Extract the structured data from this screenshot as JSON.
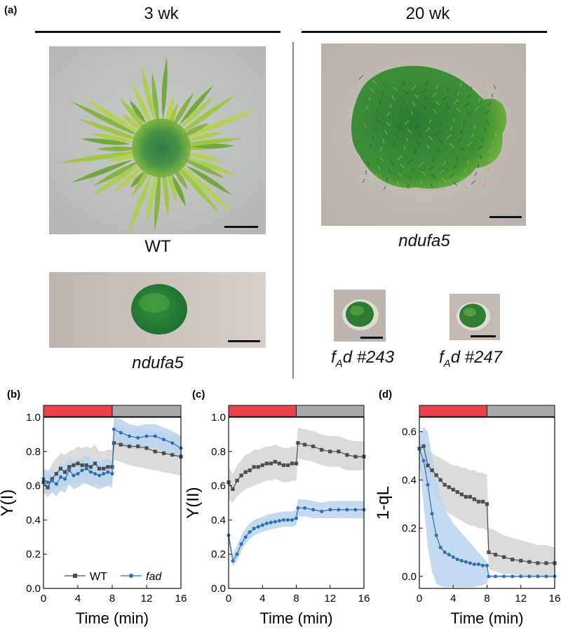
{
  "panel_a": {
    "label": "(a)",
    "col_left_title": "3 wk",
    "col_right_title": "20 wk",
    "captions": {
      "wt": "WT",
      "ndufa5_left": "ndufa5",
      "ndufa5_right": "ndufa5",
      "fad243_f": "f",
      "fad243_sub": "A",
      "fad243_rest": "d #243",
      "fad247_f": "f",
      "fad247_sub": "A",
      "fad247_rest": "d #247"
    }
  },
  "colors": {
    "light_bar": "#e8434a",
    "dark_bar": "#a7a9ab",
    "wt_line": "#4d4d4d",
    "wt_band": "#cfcfcf",
    "fad_line": "#2f6db5",
    "fad_band": "#b9d3ee"
  },
  "chart_data": [
    {
      "panel_label": "(b)",
      "type": "line",
      "xlabel": "Time (min)",
      "ylabel": "Y(I)",
      "xlim": [
        0,
        16
      ],
      "ylim": [
        0,
        1.0
      ],
      "xticks": [
        0,
        4,
        8,
        12,
        16
      ],
      "yticks": [
        0.0,
        0.2,
        0.4,
        0.6,
        0.8,
        1.0
      ],
      "xtick_labels": [
        "0",
        "4",
        "8",
        "12",
        "16"
      ],
      "ytick_labels": [
        "0.0",
        "0.2",
        "0.4",
        "0.6",
        "0.8",
        "1.0"
      ],
      "light_period": [
        0,
        8
      ],
      "dark_period": [
        8,
        16
      ],
      "legend": {
        "placement": "bottom",
        "entries": [
          "WT",
          "fad"
        ]
      },
      "series": [
        {
          "name": "WT",
          "x": [
            0,
            0.5,
            1,
            1.5,
            2,
            2.5,
            3,
            3.5,
            4,
            4.5,
            5,
            5.5,
            6,
            6.5,
            7,
            7.5,
            8,
            8.2,
            9,
            10,
            11,
            12,
            13,
            14,
            15,
            16
          ],
          "y": [
            0.62,
            0.59,
            0.64,
            0.67,
            0.7,
            0.68,
            0.71,
            0.72,
            0.73,
            0.72,
            0.72,
            0.71,
            0.73,
            0.7,
            0.7,
            0.71,
            0.71,
            0.85,
            0.84,
            0.83,
            0.83,
            0.82,
            0.8,
            0.79,
            0.78,
            0.77
          ],
          "lower": [
            0.56,
            0.53,
            0.56,
            0.58,
            0.6,
            0.59,
            0.61,
            0.62,
            0.62,
            0.62,
            0.61,
            0.6,
            0.62,
            0.6,
            0.6,
            0.61,
            0.61,
            0.75,
            0.74,
            0.72,
            0.71,
            0.7,
            0.69,
            0.68,
            0.67,
            0.66
          ],
          "upper": [
            0.69,
            0.67,
            0.73,
            0.76,
            0.79,
            0.78,
            0.8,
            0.81,
            0.83,
            0.82,
            0.83,
            0.82,
            0.84,
            0.8,
            0.8,
            0.81,
            0.81,
            0.95,
            0.94,
            0.93,
            0.94,
            0.93,
            0.92,
            0.91,
            0.9,
            0.89
          ]
        },
        {
          "name": "fad",
          "x": [
            0,
            0.5,
            1,
            1.5,
            2,
            2.5,
            3,
            3.5,
            4,
            4.5,
            5,
            5.5,
            6,
            6.5,
            7,
            7.5,
            8,
            8.2,
            9,
            10,
            11,
            12,
            13,
            14,
            15,
            16
          ],
          "y": [
            0.64,
            0.62,
            0.63,
            0.61,
            0.65,
            0.64,
            0.69,
            0.66,
            0.67,
            0.69,
            0.7,
            0.68,
            0.67,
            0.66,
            0.67,
            0.68,
            0.67,
            0.93,
            0.91,
            0.89,
            0.88,
            0.89,
            0.89,
            0.87,
            0.85,
            0.82
          ],
          "lower": [
            0.58,
            0.55,
            0.56,
            0.54,
            0.57,
            0.56,
            0.61,
            0.58,
            0.59,
            0.61,
            0.62,
            0.6,
            0.59,
            0.58,
            0.59,
            0.6,
            0.59,
            0.85,
            0.83,
            0.82,
            0.81,
            0.82,
            0.82,
            0.8,
            0.78,
            0.75
          ],
          "upper": [
            0.7,
            0.69,
            0.7,
            0.68,
            0.73,
            0.72,
            0.77,
            0.74,
            0.75,
            0.77,
            0.78,
            0.76,
            0.75,
            0.74,
            0.75,
            0.76,
            0.75,
            1.0,
            0.99,
            0.96,
            0.95,
            0.96,
            0.96,
            0.94,
            0.92,
            0.89
          ]
        }
      ]
    },
    {
      "panel_label": "(c)",
      "type": "line",
      "xlabel": "Time (min)",
      "ylabel": "Y(II)",
      "xlim": [
        0,
        16
      ],
      "ylim": [
        0,
        1.0
      ],
      "xticks": [
        0,
        4,
        8,
        12,
        16
      ],
      "yticks": [
        0.0,
        0.2,
        0.4,
        0.6,
        0.8,
        1.0
      ],
      "xtick_labels": [
        "0",
        "4",
        "8",
        "12",
        "16"
      ],
      "ytick_labels": [
        "0.0",
        "0.2",
        "0.4",
        "0.6",
        "0.8",
        "1.0"
      ],
      "light_period": [
        0,
        8
      ],
      "dark_period": [
        8,
        16
      ],
      "series": [
        {
          "name": "WT",
          "x": [
            0,
            0.5,
            1,
            1.5,
            2,
            2.5,
            3,
            3.5,
            4,
            4.5,
            5,
            5.5,
            6,
            6.5,
            7,
            7.5,
            8,
            8.2,
            9,
            10,
            11,
            12,
            13,
            14,
            15,
            16
          ],
          "y": [
            0.62,
            0.58,
            0.63,
            0.66,
            0.68,
            0.69,
            0.71,
            0.71,
            0.72,
            0.73,
            0.73,
            0.74,
            0.73,
            0.72,
            0.72,
            0.73,
            0.73,
            0.85,
            0.84,
            0.83,
            0.81,
            0.8,
            0.8,
            0.78,
            0.77,
            0.77
          ],
          "lower": [
            0.52,
            0.5,
            0.54,
            0.56,
            0.58,
            0.59,
            0.6,
            0.61,
            0.62,
            0.63,
            0.63,
            0.64,
            0.63,
            0.62,
            0.62,
            0.63,
            0.63,
            0.76,
            0.75,
            0.74,
            0.72,
            0.71,
            0.71,
            0.69,
            0.69,
            0.69
          ],
          "upper": [
            0.71,
            0.67,
            0.72,
            0.75,
            0.78,
            0.79,
            0.81,
            0.81,
            0.82,
            0.83,
            0.83,
            0.84,
            0.83,
            0.82,
            0.82,
            0.83,
            0.83,
            0.94,
            0.93,
            0.92,
            0.9,
            0.89,
            0.89,
            0.87,
            0.86,
            0.86
          ]
        },
        {
          "name": "fad",
          "x": [
            0,
            0.5,
            1,
            1.5,
            2,
            2.5,
            3,
            3.5,
            4,
            4.5,
            5,
            5.5,
            6,
            6.5,
            7,
            7.5,
            8,
            8.2,
            9,
            10,
            11,
            12,
            13,
            14,
            15,
            16
          ],
          "y": [
            0.31,
            0.16,
            0.2,
            0.26,
            0.3,
            0.33,
            0.35,
            0.36,
            0.37,
            0.38,
            0.385,
            0.39,
            0.395,
            0.4,
            0.4,
            0.4,
            0.41,
            0.47,
            0.47,
            0.46,
            0.45,
            0.46,
            0.46,
            0.46,
            0.46,
            0.46
          ],
          "lower": [
            0.28,
            0.13,
            0.16,
            0.22,
            0.26,
            0.29,
            0.31,
            0.32,
            0.33,
            0.34,
            0.345,
            0.35,
            0.355,
            0.36,
            0.36,
            0.36,
            0.37,
            0.42,
            0.42,
            0.41,
            0.41,
            0.41,
            0.41,
            0.41,
            0.41,
            0.41
          ],
          "upper": [
            0.34,
            0.2,
            0.25,
            0.31,
            0.35,
            0.38,
            0.4,
            0.41,
            0.42,
            0.43,
            0.435,
            0.44,
            0.445,
            0.45,
            0.45,
            0.45,
            0.46,
            0.52,
            0.52,
            0.51,
            0.5,
            0.51,
            0.51,
            0.51,
            0.51,
            0.51
          ]
        }
      ]
    },
    {
      "panel_label": "(d)",
      "type": "line",
      "xlabel": "Time (min)",
      "ylabel": "1-qL",
      "xlim": [
        0,
        16
      ],
      "ylim": [
        -0.05,
        0.66
      ],
      "xticks": [
        0,
        4,
        8,
        12,
        16
      ],
      "yticks": [
        0.0,
        0.2,
        0.4,
        0.6
      ],
      "xtick_labels": [
        "0",
        "4",
        "8",
        "12",
        "16"
      ],
      "ytick_labels": [
        "0.0",
        "0.2",
        "0.4",
        "0.6"
      ],
      "light_period": [
        0,
        8
      ],
      "dark_period": [
        8,
        16
      ],
      "series": [
        {
          "name": "WT",
          "x": [
            0,
            0.5,
            1,
            1.5,
            2,
            2.5,
            3,
            3.5,
            4,
            4.5,
            5,
            5.5,
            6,
            6.5,
            7,
            7.5,
            8,
            8.2,
            9,
            10,
            11,
            12,
            13,
            14,
            15,
            16
          ],
          "y": [
            0.53,
            0.54,
            0.46,
            0.44,
            0.42,
            0.4,
            0.38,
            0.37,
            0.36,
            0.35,
            0.34,
            0.33,
            0.33,
            0.32,
            0.31,
            0.31,
            0.3,
            0.1,
            0.09,
            0.08,
            0.07,
            0.065,
            0.06,
            0.055,
            0.055,
            0.055
          ],
          "lower": [
            0.5,
            0.5,
            0.4,
            0.36,
            0.33,
            0.3,
            0.28,
            0.26,
            0.25,
            0.24,
            0.23,
            0.22,
            0.21,
            0.21,
            0.2,
            0.2,
            0.19,
            0.03,
            0.02,
            0.01,
            0.01,
            0.005,
            0.0,
            0.0,
            0.0,
            0.0
          ],
          "upper": [
            0.56,
            0.57,
            0.52,
            0.51,
            0.5,
            0.49,
            0.48,
            0.47,
            0.46,
            0.46,
            0.45,
            0.45,
            0.44,
            0.44,
            0.43,
            0.43,
            0.42,
            0.2,
            0.19,
            0.17,
            0.16,
            0.15,
            0.14,
            0.13,
            0.13,
            0.12
          ]
        },
        {
          "name": "fad",
          "x": [
            0,
            0.5,
            1,
            1.5,
            2,
            2.5,
            3,
            3.5,
            4,
            4.5,
            5,
            5.5,
            6,
            6.5,
            7,
            7.5,
            8,
            8.2,
            9,
            10,
            11,
            12,
            13,
            14,
            15,
            16
          ],
          "y": [
            0.53,
            0.48,
            0.38,
            0.26,
            0.17,
            0.12,
            0.1,
            0.09,
            0.08,
            0.07,
            0.065,
            0.06,
            0.055,
            0.05,
            0.05,
            0.045,
            0.045,
            0.0,
            0.0,
            0.0,
            0.0,
            0.0,
            0.0,
            0.0,
            0.0,
            0.0
          ],
          "lower": [
            0.47,
            0.3,
            0.12,
            0.02,
            -0.03,
            -0.04,
            -0.045,
            -0.045,
            -0.045,
            -0.045,
            -0.045,
            -0.045,
            -0.045,
            -0.045,
            -0.04,
            -0.035,
            -0.03,
            -0.005,
            -0.005,
            -0.005,
            -0.005,
            -0.005,
            -0.005,
            -0.005,
            -0.005,
            -0.005
          ],
          "upper": [
            0.58,
            0.62,
            0.6,
            0.5,
            0.4,
            0.33,
            0.28,
            0.25,
            0.22,
            0.2,
            0.18,
            0.16,
            0.14,
            0.12,
            0.1,
            0.08,
            0.06,
            0.005,
            0.005,
            0.005,
            0.005,
            0.005,
            0.005,
            0.005,
            0.005,
            0.005
          ]
        }
      ]
    }
  ]
}
